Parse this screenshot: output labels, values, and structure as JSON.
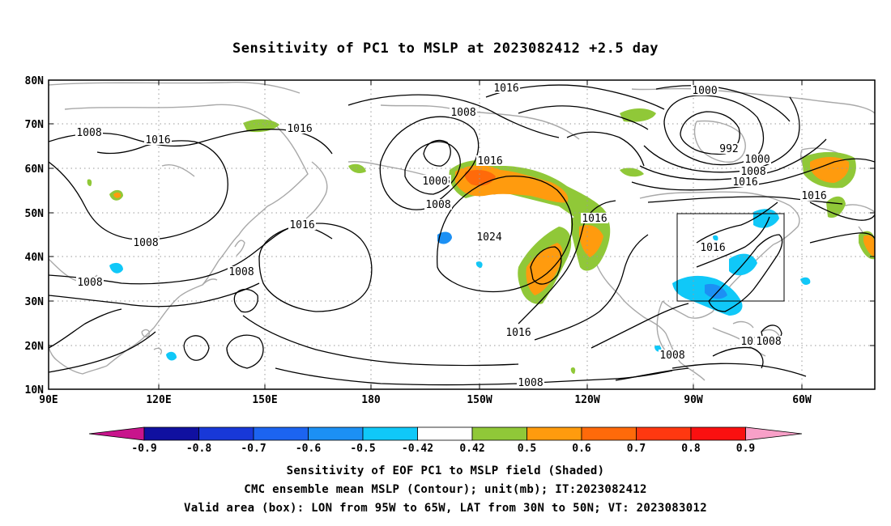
{
  "title": "Sensitivity of PC1 to MSLP at 2023082412 +2.5 day",
  "axes": {
    "lat_labels": [
      "80N",
      "70N",
      "60N",
      "50N",
      "40N",
      "30N",
      "20N",
      "10N"
    ],
    "lon_labels": [
      "90E",
      "120E",
      "150E",
      "180",
      "150W",
      "120W",
      "90W",
      "60W"
    ],
    "lon_range": [
      "90E",
      "40W"
    ],
    "lat_range": [
      "10N",
      "80N"
    ],
    "grid": "dotted every 30° lon / 10° lat"
  },
  "contour_labels": [
    "1016",
    "1008",
    "1008",
    "1016",
    "1016",
    "1008",
    "1008",
    "1008",
    "1008",
    "1000",
    "1016",
    "1008",
    "1016",
    "1024",
    "1016",
    "1016",
    "1016",
    "1008",
    "1008",
    "1000",
    "992",
    "1000",
    "1008",
    "1016",
    "1016",
    "1016",
    "1008"
  ],
  "box": {
    "label": "Valid area",
    "lon": [
      "95W",
      "65W"
    ],
    "lat": [
      "30N",
      "50N"
    ]
  },
  "colorbar": {
    "ticks": [
      "-0.9",
      "-0.8",
      "-0.7",
      "-0.6",
      "-0.5",
      "-0.42",
      "0.42",
      "0.5",
      "0.6",
      "0.7",
      "0.8",
      "0.9"
    ],
    "colors": [
      "#1010a0",
      "#1838d8",
      "#1c64f0",
      "#1c90f4",
      "#10c8f8",
      "#ffffff",
      "#90c838",
      "#ff9b0e",
      "#ff6a0a",
      "#ff3810",
      "#fa1010"
    ],
    "under_color": "#c8148c",
    "over_color": "#f8a0c8"
  },
  "footer": {
    "line1": "Sensitivity of EOF PC1 to MSLP field (Shaded)",
    "line2": "CMC ensemble mean MSLP (Contour); unit(mb); IT:2023082412",
    "line3": "Valid area (box): LON from 95W to 65W, LAT from 30N to 50N; VT: 2023083012"
  }
}
